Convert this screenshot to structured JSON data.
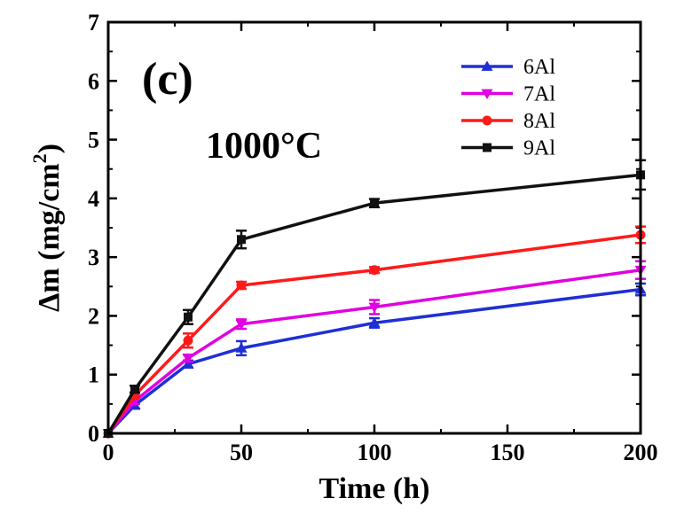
{
  "chart_data": {
    "type": "line",
    "panel_label": "(c)",
    "annotation": "1000°C",
    "xlabel": "Time (h)",
    "ylabel_main": "Δm (mg/cm",
    "ylabel_sup": "2",
    "ylabel_close": ")",
    "xlim": [
      0,
      200
    ],
    "ylim": [
      0,
      7
    ],
    "xticks": [
      "0",
      "50",
      "100",
      "150",
      "200"
    ],
    "yticks": [
      "0",
      "1",
      "2",
      "3",
      "4",
      "5",
      "6",
      "7"
    ],
    "legend_position": "top-right",
    "x": [
      0,
      10,
      30,
      50,
      100,
      200
    ],
    "series": [
      {
        "name": "6Al",
        "color": "#1f2fd6",
        "marker": "triangle-up",
        "values": [
          0,
          0.48,
          1.18,
          1.45,
          1.88,
          2.45
        ],
        "errors": [
          0,
          0.06,
          0.06,
          0.12,
          0.08,
          0.1
        ]
      },
      {
        "name": "7Al",
        "color": "#e000e0",
        "marker": "triangle-down",
        "values": [
          0,
          0.55,
          1.28,
          1.86,
          2.15,
          2.78
        ],
        "errors": [
          0,
          0.05,
          0.06,
          0.08,
          0.12,
          0.15
        ]
      },
      {
        "name": "8Al",
        "color": "#ff1a1a",
        "marker": "circle",
        "values": [
          0,
          0.65,
          1.58,
          2.52,
          2.78,
          3.38
        ],
        "errors": [
          0,
          0.05,
          0.12,
          0.06,
          0.05,
          0.14
        ]
      },
      {
        "name": "9Al",
        "color": "#111111",
        "marker": "square",
        "values": [
          0,
          0.75,
          1.98,
          3.3,
          3.92,
          4.4
        ],
        "errors": [
          0,
          0.06,
          0.12,
          0.15,
          0.07,
          0.25
        ]
      }
    ]
  }
}
